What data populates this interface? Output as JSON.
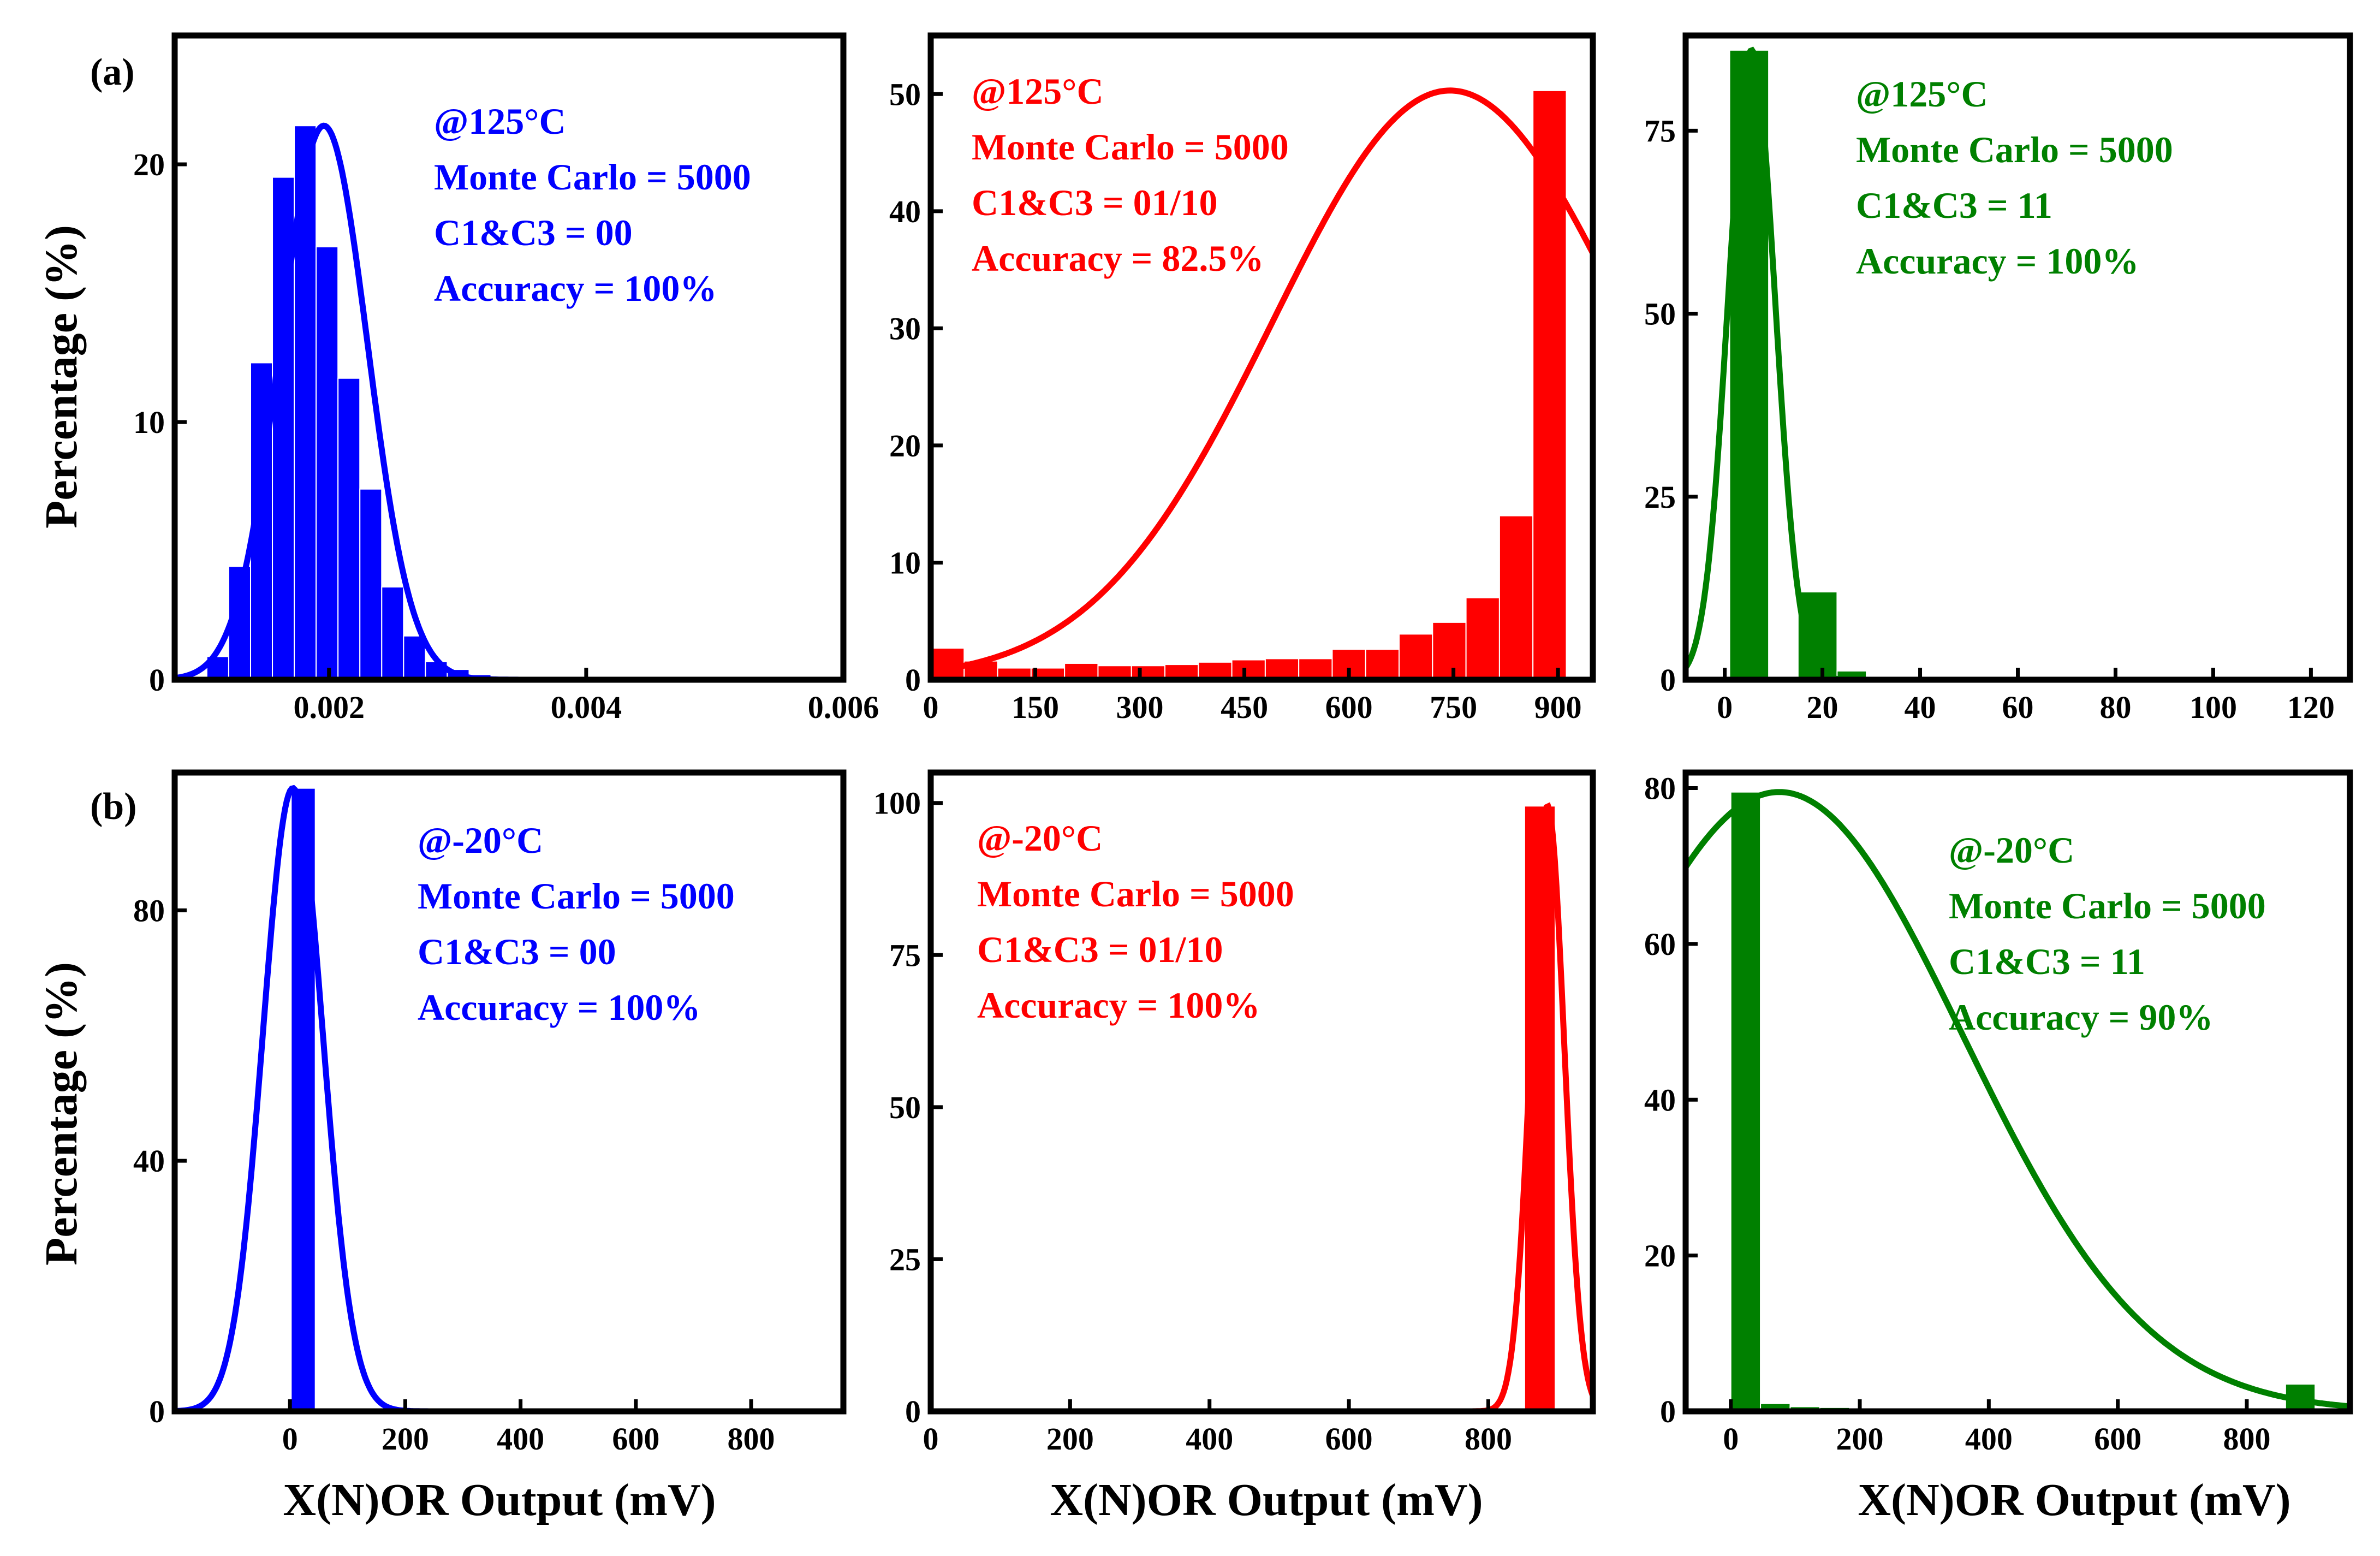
{
  "figure": {
    "row_labels": [
      "(a)",
      "(b)"
    ],
    "ylabel": "Percentage (%)",
    "xlabel": "X(N)OR Output (mV)"
  },
  "chart_data": [
    {
      "type": "bar",
      "panel": "a1",
      "color": "#0000ff",
      "xlim": [
        0.0008,
        0.006
      ],
      "ylim": [
        0,
        25
      ],
      "xticks": [
        0.002,
        0.004,
        0.006
      ],
      "xtick_labels": [
        "0.002",
        "0.004",
        "0.006"
      ],
      "yticks": [
        0,
        10,
        20
      ],
      "ytick_labels": [
        "0",
        "10",
        "20"
      ],
      "bars": [
        {
          "x": 0.00105,
          "w": 0.00017,
          "v": 0.9
        },
        {
          "x": 0.00122,
          "w": 0.00017,
          "v": 4.4
        },
        {
          "x": 0.00139,
          "w": 0.00017,
          "v": 12.3
        },
        {
          "x": 0.00156,
          "w": 0.00017,
          "v": 19.5
        },
        {
          "x": 0.00173,
          "w": 0.00017,
          "v": 21.5
        },
        {
          "x": 0.0019,
          "w": 0.00017,
          "v": 16.8
        },
        {
          "x": 0.00207,
          "w": 0.00017,
          "v": 11.7
        },
        {
          "x": 0.00224,
          "w": 0.00017,
          "v": 7.4
        },
        {
          "x": 0.00241,
          "w": 0.00017,
          "v": 3.6
        },
        {
          "x": 0.00258,
          "w": 0.00017,
          "v": 1.7
        },
        {
          "x": 0.00275,
          "w": 0.00017,
          "v": 0.7
        },
        {
          "x": 0.00292,
          "w": 0.00017,
          "v": 0.4
        },
        {
          "x": 0.00309,
          "w": 0.00017,
          "v": 0.2
        },
        {
          "x": 0.00326,
          "w": 0.00017,
          "v": 0.1
        }
      ],
      "curve": {
        "mu": 0.00196,
        "sigma": 0.00034,
        "peak": 21.5
      },
      "annotations": [
        "@125°C",
        "Monte Carlo = 5000",
        "C1&C3 = 00",
        "Accuracy = 100%"
      ]
    },
    {
      "type": "bar",
      "panel": "a2",
      "color": "#ff0000",
      "xlim": [
        0,
        950
      ],
      "ylim": [
        0,
        55
      ],
      "xticks": [
        0,
        150,
        300,
        450,
        600,
        750,
        900
      ],
      "xtick_labels": [
        "0",
        "150",
        "300",
        "450",
        "600",
        "750",
        "900"
      ],
      "yticks": [
        0,
        10,
        20,
        30,
        40,
        50
      ],
      "ytick_labels": [
        "0",
        "10",
        "20",
        "30",
        "40",
        "50"
      ],
      "bars": [
        {
          "x": 0,
          "w": 48,
          "v": 2.7
        },
        {
          "x": 48,
          "w": 48,
          "v": 1.6
        },
        {
          "x": 96,
          "w": 48,
          "v": 1.0
        },
        {
          "x": 144,
          "w": 48,
          "v": 1.0
        },
        {
          "x": 192,
          "w": 48,
          "v": 1.4
        },
        {
          "x": 240,
          "w": 48,
          "v": 1.2
        },
        {
          "x": 288,
          "w": 48,
          "v": 1.2
        },
        {
          "x": 336,
          "w": 48,
          "v": 1.3
        },
        {
          "x": 384,
          "w": 48,
          "v": 1.5
        },
        {
          "x": 432,
          "w": 48,
          "v": 1.7
        },
        {
          "x": 480,
          "w": 48,
          "v": 1.8
        },
        {
          "x": 528,
          "w": 48,
          "v": 1.8
        },
        {
          "x": 576,
          "w": 48,
          "v": 2.6
        },
        {
          "x": 624,
          "w": 48,
          "v": 2.6
        },
        {
          "x": 672,
          "w": 48,
          "v": 3.9
        },
        {
          "x": 720,
          "w": 48,
          "v": 4.9
        },
        {
          "x": 768,
          "w": 48,
          "v": 7.0
        },
        {
          "x": 816,
          "w": 48,
          "v": 14.0
        },
        {
          "x": 864,
          "w": 48,
          "v": 50.3
        }
      ],
      "curve": {
        "mu": 745,
        "sigma": 255,
        "peak": 50.3
      },
      "annotations": [
        "@125°C",
        "Monte Carlo = 5000",
        "C1&C3 = 01/10",
        "Accuracy = 82.5%"
      ]
    },
    {
      "type": "bar",
      "panel": "a3",
      "color": "#008000",
      "xlim": [
        -8,
        128
      ],
      "ylim": [
        0,
        88
      ],
      "xticks": [
        0,
        20,
        40,
        60,
        80,
        100,
        120
      ],
      "xtick_labels": [
        "0",
        "20",
        "40",
        "60",
        "80",
        "100",
        "120"
      ],
      "yticks": [
        0,
        25,
        50,
        75
      ],
      "ytick_labels": [
        "0",
        "25",
        "50",
        "75"
      ],
      "bars": [
        {
          "x": 1,
          "w": 8,
          "v": 86
        },
        {
          "x": 15,
          "w": 8,
          "v": 12
        },
        {
          "x": 23,
          "w": 6,
          "v": 1.2
        }
      ],
      "curve": {
        "mu": 5.5,
        "sigma": 4.8,
        "peak": 86
      },
      "annotations": [
        "@125°C",
        "Monte Carlo = 5000",
        "C1&C3 = 11",
        "Accuracy = 100%"
      ]
    },
    {
      "type": "bar",
      "panel": "b1",
      "color": "#0000ff",
      "xlim": [
        -200,
        960
      ],
      "ylim": [
        0,
        102
      ],
      "xticks": [
        0,
        200,
        400,
        600,
        800
      ],
      "xtick_labels": [
        "0",
        "200",
        "400",
        "600",
        "800"
      ],
      "yticks": [
        0,
        40,
        80
      ],
      "ytick_labels": [
        "0",
        "40",
        "80"
      ],
      "bars": [
        {
          "x": 2,
          "w": 42,
          "v": 99.5
        }
      ],
      "curve": {
        "mu": 5,
        "sigma": 52,
        "peak": 99.5
      },
      "annotations": [
        "@-20°C",
        "Monte Carlo = 5000",
        "C1&C3 = 00",
        "Accuracy = 100%"
      ]
    },
    {
      "type": "bar",
      "panel": "b2",
      "color": "#ff0000",
      "xlim": [
        0,
        950
      ],
      "ylim": [
        0,
        105
      ],
      "xticks": [
        0,
        200,
        400,
        600,
        800
      ],
      "xtick_labels": [
        "0",
        "200",
        "400",
        "600",
        "800"
      ],
      "yticks": [
        0,
        25,
        50,
        75,
        100
      ],
      "ytick_labels": [
        "0",
        "25",
        "50",
        "75",
        "100"
      ],
      "bars": [
        {
          "x": 852,
          "w": 44,
          "v": 99.5
        }
      ],
      "curve": {
        "mu": 885,
        "sigma": 24,
        "peak": 99.5
      },
      "annotations": [
        "@-20°C",
        "Monte Carlo = 5000",
        "C1&C3 = 01/10",
        "Accuracy = 100%"
      ]
    },
    {
      "type": "bar",
      "panel": "b3",
      "color": "#008000",
      "xlim": [
        -70,
        960
      ],
      "ylim": [
        0,
        82
      ],
      "xticks": [
        0,
        200,
        400,
        600,
        800
      ],
      "xtick_labels": [
        "0",
        "200",
        "400",
        "600",
        "800"
      ],
      "yticks": [
        0,
        20,
        40,
        60,
        80
      ],
      "ytick_labels": [
        "0",
        "20",
        "40",
        "60",
        "80"
      ],
      "bars": [
        {
          "x": 0,
          "w": 46,
          "v": 79.5
        },
        {
          "x": 46,
          "w": 46,
          "v": 1.0
        },
        {
          "x": 92,
          "w": 46,
          "v": 0.6
        },
        {
          "x": 138,
          "w": 46,
          "v": 0.5
        },
        {
          "x": 184,
          "w": 46,
          "v": 0.4
        },
        {
          "x": 230,
          "w": 46,
          "v": 0.4
        },
        {
          "x": 276,
          "w": 46,
          "v": 0.4
        },
        {
          "x": 322,
          "w": 46,
          "v": 0.4
        },
        {
          "x": 368,
          "w": 46,
          "v": 0.4
        },
        {
          "x": 414,
          "w": 46,
          "v": 0.4
        },
        {
          "x": 460,
          "w": 46,
          "v": 0.4
        },
        {
          "x": 506,
          "w": 46,
          "v": 0.4
        },
        {
          "x": 860,
          "w": 46,
          "v": 3.5
        }
      ],
      "curve": {
        "mu": 75,
        "sigma": 285,
        "peak": 79.5
      },
      "annotations": [
        "@-20°C",
        "Monte Carlo = 5000",
        "C1&C3 = 11",
        "Accuracy = 90%"
      ]
    }
  ]
}
